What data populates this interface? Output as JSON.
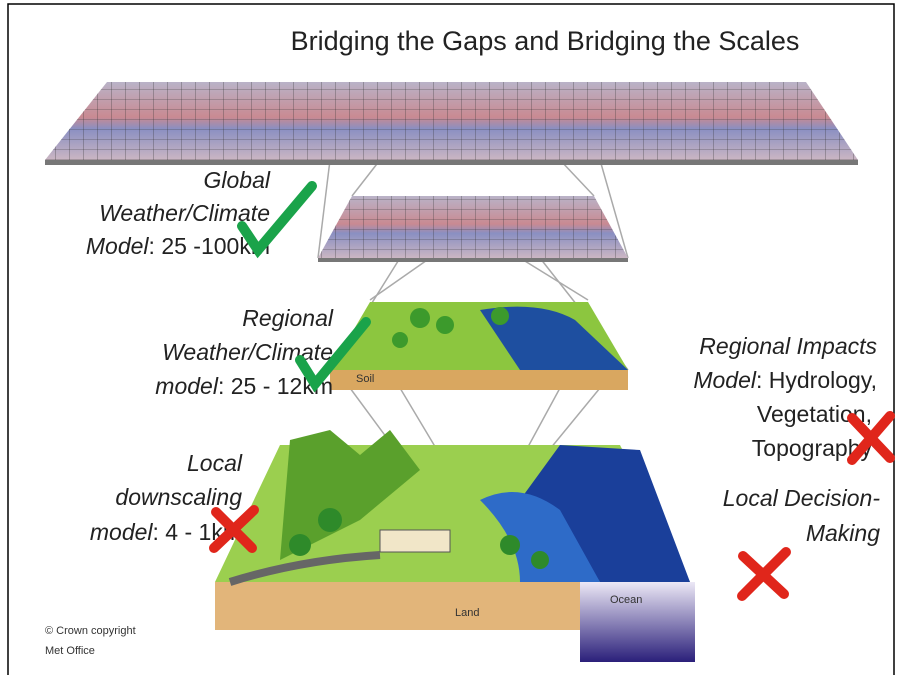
{
  "title": "Bridging the Gaps and Bridging the Scales",
  "labels": {
    "global": {
      "lines": [
        "Global",
        "Weather/Climate"
      ],
      "term": "Model",
      "detail": ": 25 -100km"
    },
    "regional": {
      "lines": [
        "Regional",
        "Weather/Climate"
      ],
      "term": "model",
      "detail": ": 25 - 12km"
    },
    "local": {
      "lines": [
        "Local",
        "downscaling"
      ],
      "term": "model",
      "detail": ": 4 - 1km"
    },
    "impacts": {
      "lines": [
        "Regional Impacts"
      ],
      "term": "Model",
      "detail": ": Hydrology,",
      "more": [
        "Vegetation,",
        "Topography"
      ]
    },
    "decision": {
      "lines": [
        "Local Decision-",
        "Making"
      ]
    }
  },
  "layer_labels": {
    "soil": "Soil",
    "land": "Land",
    "ocean": "Ocean"
  },
  "copyright": [
    "© Crown copyright",
    "Met Office"
  ]
}
